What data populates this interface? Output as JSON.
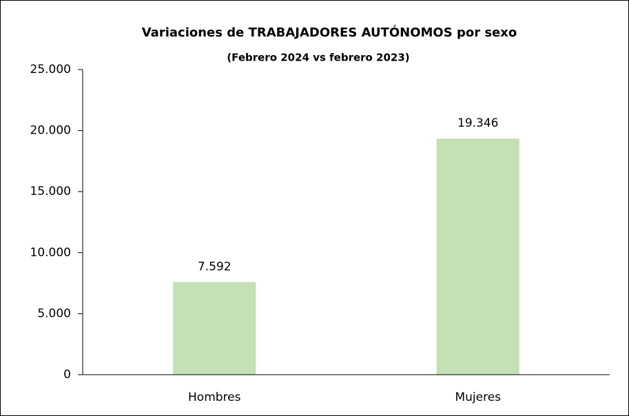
{
  "chart_data": {
    "type": "bar",
    "title": "Variaciones de TRABAJADORES  AUTÓNOMOS  por sexo",
    "subtitle": "(Febrero 2024 vs febrero 2023)",
    "categories": [
      "Hombres",
      "Mujeres"
    ],
    "values": [
      7592,
      19346
    ],
    "value_labels": [
      "7.592",
      "19.346"
    ],
    "color": "#c5e0b4",
    "ylim": [
      0,
      25000
    ],
    "yticks": [
      0,
      {
        "value": 5000,
        "label": "5.000"
      },
      {
        "value": 10000,
        "label": "10.000"
      },
      {
        "value": 15000,
        "label": "15.000"
      },
      {
        "value": 20000,
        "label": "20.000"
      },
      {
        "value": 25000,
        "label": "25.000"
      }
    ],
    "grid": false
  }
}
